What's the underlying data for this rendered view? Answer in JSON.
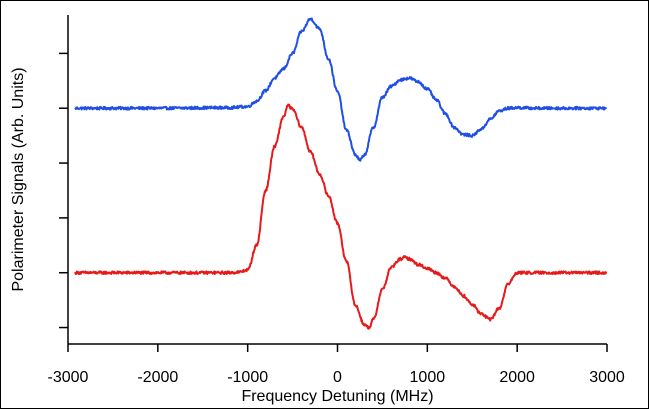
{
  "chart_data": {
    "type": "line",
    "title": "",
    "xlabel": "Frequency Detuning (MHz)",
    "ylabel": "Polarimeter Signals (Arb. Units)",
    "xlim": [
      -3000,
      3000
    ],
    "xticks": [
      -3000,
      -2000,
      -1000,
      0,
      1000,
      2000,
      3000
    ],
    "x_tick_labels": [
      "-3000",
      "-2000",
      "-1000",
      "0",
      "1000",
      "2000",
      "3000"
    ],
    "ylim": [
      0,
      6
    ],
    "yticks": [
      0.3,
      1.3,
      2.3,
      3.3,
      4.3,
      5.3
    ],
    "y_tick_labels_shown": false,
    "grid": false,
    "legend": false,
    "series": [
      {
        "color": "#1f4fe6",
        "baseline": 4.3,
        "x": [
          -3000,
          -2000,
          -1200,
          -1000,
          -900,
          -800,
          -700,
          -600,
          -500,
          -400,
          -300,
          -200,
          -100,
          0,
          100,
          200,
          250,
          300,
          400,
          500,
          600,
          700,
          800,
          900,
          1000,
          1100,
          1200,
          1300,
          1400,
          1500,
          1600,
          1700,
          1800,
          1900,
          2000,
          2200,
          2500,
          3000
        ],
        "values": [
          4.3,
          4.3,
          4.31,
          4.33,
          4.43,
          4.62,
          4.85,
          5.02,
          5.3,
          5.7,
          5.93,
          5.75,
          5.2,
          4.6,
          3.9,
          3.45,
          3.35,
          3.45,
          3.95,
          4.5,
          4.7,
          4.82,
          4.85,
          4.78,
          4.65,
          4.45,
          4.2,
          3.95,
          3.82,
          3.8,
          3.92,
          4.1,
          4.25,
          4.3,
          4.31,
          4.3,
          4.3,
          4.3
        ]
      },
      {
        "color": "#e8191a",
        "baseline": 1.3,
        "x": [
          -3000,
          -2000,
          -1200,
          -1100,
          -1000,
          -900,
          -800,
          -700,
          -600,
          -550,
          -500,
          -400,
          -300,
          -200,
          -100,
          0,
          100,
          200,
          300,
          350,
          400,
          500,
          600,
          700,
          750,
          800,
          900,
          1000,
          1100,
          1200,
          1300,
          1400,
          1500,
          1600,
          1700,
          1800,
          1900,
          2000,
          2200,
          2500,
          3000
        ],
        "values": [
          1.3,
          1.3,
          1.3,
          1.31,
          1.35,
          1.8,
          2.8,
          3.6,
          4.15,
          4.35,
          4.28,
          3.95,
          3.5,
          3.1,
          2.7,
          2.2,
          1.5,
          0.7,
          0.35,
          0.3,
          0.45,
          1.0,
          1.4,
          1.55,
          1.58,
          1.55,
          1.45,
          1.38,
          1.3,
          1.2,
          1.05,
          0.88,
          0.72,
          0.55,
          0.45,
          0.65,
          1.1,
          1.3,
          1.3,
          1.3,
          1.3
        ]
      }
    ]
  }
}
